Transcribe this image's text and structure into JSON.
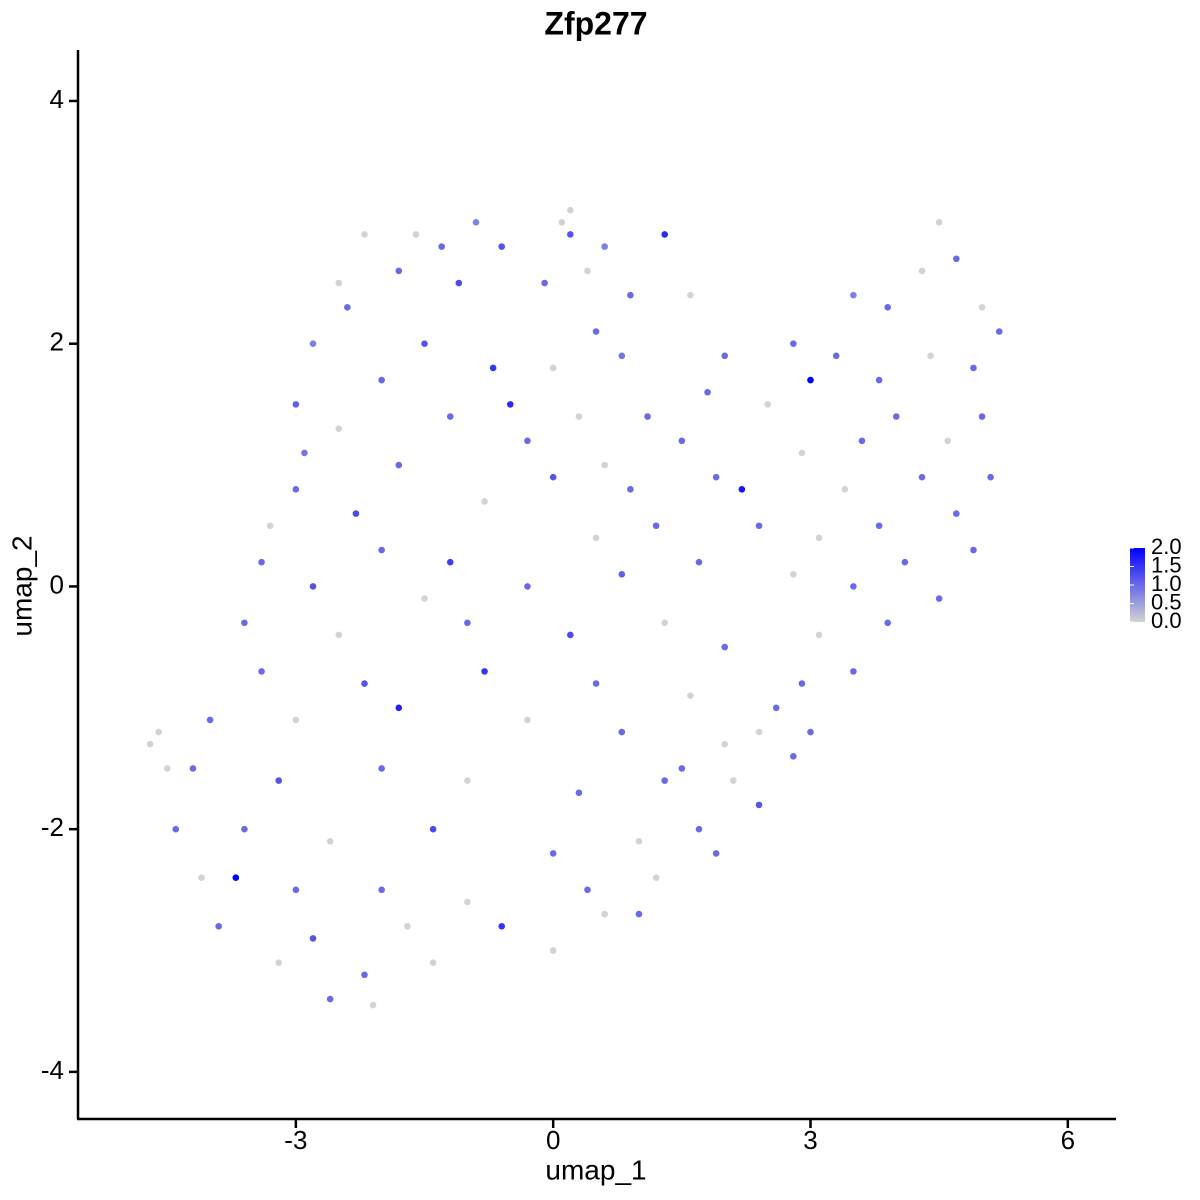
{
  "chart_data": {
    "type": "scatter",
    "title": "Zfp277",
    "xlabel": "umap_1",
    "ylabel": "umap_2",
    "xlim": [
      -5.54,
      6.55
    ],
    "ylim": [
      -4.38,
      4.42
    ],
    "xticks": [
      -3,
      0,
      3,
      6
    ],
    "yticks": [
      -4,
      -2,
      0,
      2,
      4
    ],
    "colors": [
      "#d3d3d3",
      "#0000ff"
    ],
    "color_lim": [
      0,
      2
    ],
    "color_ticks": [
      {
        "value": 0,
        "label": "0.0"
      },
      0.5,
      {
        "value": 1,
        "label": "1.0"
      },
      1.5,
      {
        "value": 2,
        "label": "2.0"
      }
    ],
    "x": [
      -2.2,
      -1.3,
      -0.9,
      0.1,
      0.2,
      0.6,
      1.3,
      -1.8,
      -0.6,
      -2.4,
      -2.8,
      -1.1,
      0.4,
      0.9,
      -1.5,
      -0.7,
      0,
      0.8,
      -2.0,
      -3.0,
      -2.5,
      -1.2,
      -0.5,
      0.3,
      1.1,
      -2.9,
      -1.8,
      -0.3,
      0.6,
      1.5,
      -3.0,
      -2.3,
      -0.8,
      0.0,
      0.9,
      1.9,
      2.2,
      -3.3,
      -2.0,
      -1.2,
      0.5,
      1.2,
      2.4,
      -3.4,
      -2.8,
      -1.5,
      -0.3,
      0.8,
      1.7,
      -3.6,
      -2.5,
      -1.0,
      0.2,
      1.3,
      2.0,
      -3.4,
      -2.2,
      -0.8,
      0.5,
      1.6,
      2.6,
      -4.0,
      -3.0,
      -1.8,
      -0.3,
      0.8,
      2.0,
      3.0,
      -4.2,
      -3.2,
      -2.0,
      -1.0,
      0.3,
      1.3,
      2.4,
      -4.4,
      -3.6,
      -2.6,
      -1.4,
      0.0,
      1.0,
      1.7,
      -4.1,
      -3.7,
      -3.0,
      -2.0,
      -1.0,
      0.4,
      -3.9,
      -2.8,
      -1.7,
      -0.6,
      0.6,
      1.0,
      -3.2,
      -2.2,
      -1.4,
      0.0,
      -2.6,
      -2.1,
      -4.7,
      -4.6,
      -4.5,
      2.0,
      2.8,
      3.3,
      3.5,
      3.9,
      4.3,
      4.5,
      4.7,
      5.0,
      5.2,
      4.9,
      4.4,
      3.8,
      3.0,
      2.5,
      1.8,
      4.0,
      4.6,
      5.0,
      3.6,
      2.9,
      5.1,
      4.3,
      3.4,
      4.7,
      3.8,
      3.1,
      4.9,
      4.1,
      3.5,
      2.8,
      4.5,
      3.9,
      3.1,
      3.5,
      2.9,
      2.4,
      2.8,
      2.1,
      1.5,
      1.9,
      1.2,
      0.2,
      -1.6,
      -2.5,
      -0.1,
      1.6,
      0.5
    ],
    "y": [
      2.9,
      2.8,
      3.0,
      3.0,
      2.9,
      2.8,
      2.9,
      2.6,
      2.8,
      2.3,
      2.0,
      2.5,
      2.6,
      2.4,
      2.0,
      1.8,
      1.8,
      1.9,
      1.7,
      1.5,
      1.3,
      1.4,
      1.5,
      1.4,
      1.4,
      1.1,
      1.0,
      1.2,
      1.0,
      1.2,
      0.8,
      0.6,
      0.7,
      0.9,
      0.8,
      0.9,
      0.8,
      0.5,
      0.3,
      0.2,
      0.4,
      0.5,
      0.5,
      0.2,
      0.0,
      -0.1,
      0.0,
      0.1,
      0.2,
      -0.3,
      -0.4,
      -0.3,
      -0.4,
      -0.3,
      -0.5,
      -0.7,
      -0.8,
      -0.7,
      -0.8,
      -0.9,
      -1.0,
      -1.1,
      -1.1,
      -1.0,
      -1.1,
      -1.2,
      -1.3,
      -1.2,
      -1.5,
      -1.6,
      -1.5,
      -1.6,
      -1.7,
      -1.6,
      -1.8,
      -2.0,
      -2.0,
      -2.1,
      -2.0,
      -2.2,
      -2.1,
      -2.0,
      -2.4,
      -2.4,
      -2.5,
      -2.5,
      -2.6,
      -2.5,
      -2.8,
      -2.9,
      -2.8,
      -2.8,
      -2.7,
      -2.7,
      -3.1,
      -3.2,
      -3.1,
      -3.0,
      -3.4,
      -3.45,
      -1.3,
      -1.2,
      -1.5,
      1.9,
      2.0,
      1.9,
      2.4,
      2.3,
      2.6,
      3.0,
      2.7,
      2.3,
      2.1,
      1.8,
      1.9,
      1.7,
      1.7,
      1.5,
      1.6,
      1.4,
      1.2,
      1.4,
      1.2,
      1.1,
      0.9,
      0.9,
      0.8,
      0.6,
      0.5,
      0.4,
      0.3,
      0.2,
      0.0,
      0.1,
      -0.1,
      -0.3,
      -0.4,
      -0.7,
      -0.8,
      -1.2,
      -1.4,
      -1.6,
      -1.5,
      -2.2,
      -2.4,
      3.1,
      2.9,
      2.5,
      2.5,
      2.4,
      2.1
    ],
    "values": [
      0,
      1,
      0.8,
      0,
      1.2,
      0.8,
      1.6,
      1,
      1.2,
      1,
      0.8,
      1.3,
      0,
      1,
      1.2,
      1.5,
      0,
      0.9,
      1,
      1.1,
      0,
      1,
      1.6,
      0,
      1,
      0.9,
      1,
      1,
      0,
      1,
      1,
      1.3,
      0,
      1.2,
      1,
      1,
      1.8,
      0,
      1,
      1.4,
      0,
      1,
      1,
      1,
      1.2,
      0,
      1,
      1.1,
      1,
      1,
      0,
      1,
      1.3,
      0,
      1,
      1,
      1.2,
      1.5,
      1,
      0,
      1,
      1,
      0,
      1.7,
      0,
      1,
      0,
      1,
      1,
      1.2,
      1,
      0,
      1,
      1,
      1.2,
      1,
      1,
      0,
      1.3,
      1,
      0,
      1,
      0,
      2.0,
      1,
      1,
      0,
      1,
      1,
      1.2,
      0,
      1.5,
      0,
      1,
      0,
      1,
      0,
      0,
      1,
      0,
      0,
      0,
      0,
      1,
      1,
      1,
      0.8,
      1,
      0,
      0,
      1,
      0,
      1,
      1,
      0,
      1,
      2.0,
      0,
      1,
      1,
      0,
      1,
      1,
      0,
      1,
      1,
      0,
      1,
      1,
      0,
      1,
      1,
      1,
      0,
      1,
      1,
      0,
      1,
      1,
      0,
      1,
      0,
      1,
      1,
      0,
      0,
      0,
      0,
      1,
      0,
      1
    ]
  }
}
